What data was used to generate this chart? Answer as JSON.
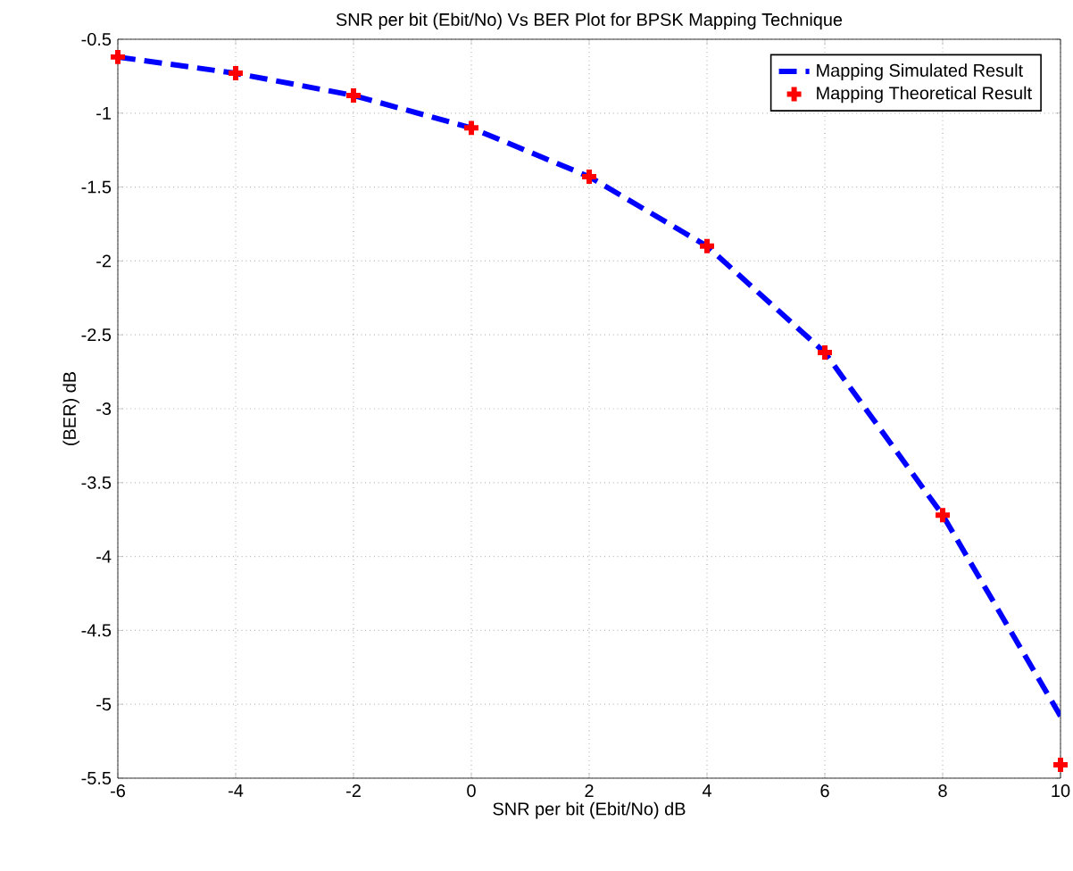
{
  "chart_data": {
    "type": "line",
    "title": "SNR per bit (Ebit/No) Vs BER Plot for BPSK Mapping Technique",
    "xlabel": "SNR per bit (Ebit/No) dB",
    "ylabel": "(BER) dB",
    "x": [
      -6,
      -4,
      -2,
      0,
      2,
      4,
      6,
      8,
      10
    ],
    "series": [
      {
        "name": "Mapping Simulated Result",
        "color": "#0000ff",
        "line_style": "dashed",
        "marker": "none",
        "values": [
          -0.62,
          -0.73,
          -0.88,
          -1.1,
          -1.43,
          -1.9,
          -2.62,
          -3.72,
          -5.08
        ]
      },
      {
        "name": "Mapping Theoretical Result",
        "type": "scatter",
        "color": "#ff0000",
        "marker": "cross",
        "values": [
          -0.62,
          -0.73,
          -0.88,
          -1.1,
          -1.43,
          -1.9,
          -2.62,
          -3.72,
          -5.41
        ]
      }
    ],
    "xlim": [
      -6,
      10
    ],
    "ylim": [
      -5.5,
      -0.5
    ],
    "xticks": [
      -6,
      -4,
      -2,
      0,
      2,
      4,
      6,
      8,
      10
    ],
    "yticks": [
      -5.5,
      -5,
      -4.5,
      -4,
      -3.5,
      -3,
      -2.5,
      -2,
      -1.5,
      -1,
      -0.5
    ],
    "grid": true,
    "legend": "top right"
  }
}
